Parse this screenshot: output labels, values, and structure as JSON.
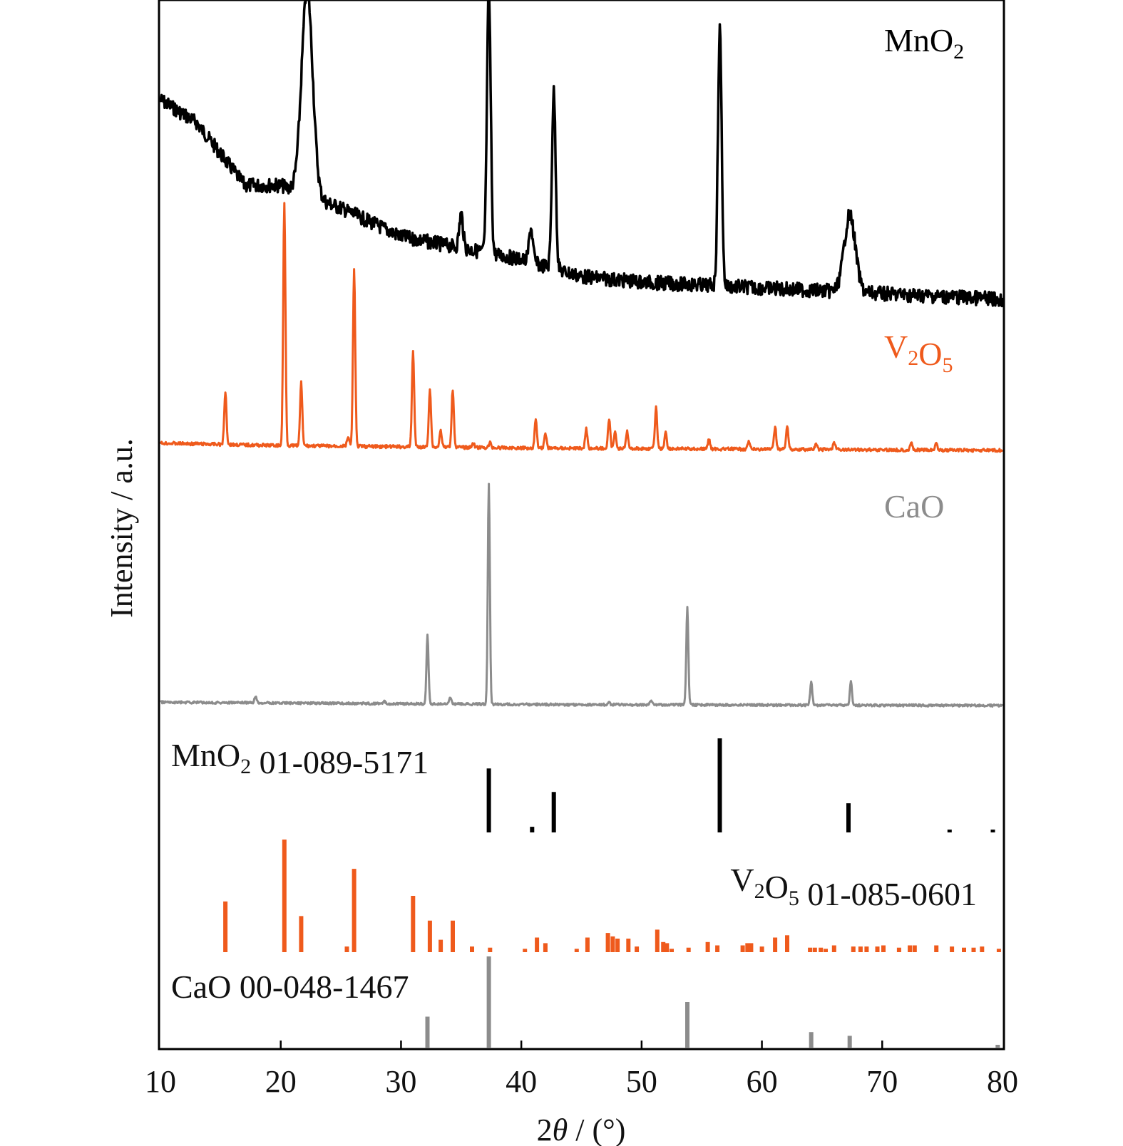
{
  "chart_data": {
    "type": "line",
    "xlabel": {
      "prefix": "2",
      "symbol": "θ",
      "suffix": " / (°)"
    },
    "ylabel": "Intensity / a.u.",
    "xlim": [
      10,
      80
    ],
    "xticks": [
      "10",
      "20",
      "30",
      "40",
      "50",
      "60",
      "70",
      "80"
    ],
    "grid": false,
    "legend": "none",
    "series": [
      {
        "name_parts": [
          [
            "Mn",
            ""
          ],
          [
            "O",
            ""
          ],
          [
            "2",
            "sub"
          ]
        ],
        "color": "#000000",
        "peaks": [
          [
            22.2,
            0.72
          ],
          [
            37.3,
            0.92
          ],
          [
            42.7,
            0.62
          ],
          [
            56.5,
            0.9
          ],
          [
            67.3,
            0.27
          ],
          [
            35.0,
            0.12
          ],
          [
            40.8,
            0.12
          ]
        ],
        "background": [
          [
            10,
            0.7
          ],
          [
            13,
            0.62
          ],
          [
            17,
            0.4
          ],
          [
            20,
            0.4
          ],
          [
            25,
            0.32
          ],
          [
            30,
            0.22
          ],
          [
            35,
            0.18
          ],
          [
            40,
            0.14
          ],
          [
            45,
            0.08
          ],
          [
            50,
            0.06
          ],
          [
            55,
            0.05
          ],
          [
            60,
            0.04
          ],
          [
            70,
            0.02
          ],
          [
            80,
            0.0
          ]
        ]
      },
      {
        "name_parts": [
          [
            "V",
            ""
          ],
          [
            "2",
            "sub"
          ],
          [
            "O",
            ""
          ],
          [
            "5",
            "sub"
          ]
        ],
        "color": "#ef5a1c",
        "peaks": [
          [
            15.4,
            0.22
          ],
          [
            20.3,
            1.0
          ],
          [
            21.7,
            0.26
          ],
          [
            25.6,
            0.04
          ],
          [
            26.1,
            0.73
          ],
          [
            31.0,
            0.4
          ],
          [
            32.4,
            0.24
          ],
          [
            33.3,
            0.07
          ],
          [
            34.3,
            0.24
          ],
          [
            36.0,
            0.02
          ],
          [
            37.4,
            0.02
          ],
          [
            41.2,
            0.12
          ],
          [
            42.0,
            0.06
          ],
          [
            45.4,
            0.08
          ],
          [
            47.3,
            0.12
          ],
          [
            47.8,
            0.07
          ],
          [
            48.8,
            0.07
          ],
          [
            51.2,
            0.17
          ],
          [
            52.0,
            0.07
          ],
          [
            55.6,
            0.04
          ],
          [
            58.9,
            0.03
          ],
          [
            61.1,
            0.09
          ],
          [
            62.1,
            0.1
          ],
          [
            64.5,
            0.02
          ],
          [
            66.0,
            0.03
          ],
          [
            72.4,
            0.03
          ],
          [
            74.5,
            0.03
          ]
        ],
        "background": [
          [
            10,
            0.03
          ],
          [
            20,
            0.02
          ],
          [
            40,
            0.01
          ],
          [
            60,
            0.005
          ],
          [
            80,
            0.0
          ]
        ]
      },
      {
        "name_parts": [
          [
            "CaO",
            ""
          ]
        ],
        "color": "#8c8c8c",
        "peaks": [
          [
            17.9,
            0.03
          ],
          [
            28.6,
            0.01
          ],
          [
            32.2,
            0.31
          ],
          [
            34.1,
            0.03
          ],
          [
            37.3,
            1.0
          ],
          [
            47.3,
            0.01
          ],
          [
            50.8,
            0.02
          ],
          [
            53.8,
            0.44
          ],
          [
            64.1,
            0.11
          ],
          [
            67.4,
            0.11
          ]
        ],
        "background": [
          [
            10,
            0.015
          ],
          [
            40,
            0.005
          ],
          [
            80,
            0.0
          ]
        ]
      }
    ],
    "references": [
      {
        "name_parts": [
          [
            "MnO",
            ""
          ],
          [
            "2",
            "sub"
          ],
          [
            " 01-089-5171",
            ""
          ]
        ],
        "color": "#000000",
        "lines": [
          [
            37.3,
            0.68
          ],
          [
            40.9,
            0.06
          ],
          [
            42.7,
            0.43
          ],
          [
            56.5,
            1.0
          ],
          [
            67.2,
            0.31
          ],
          [
            75.6,
            0.03
          ],
          [
            79.2,
            0.03
          ]
        ]
      },
      {
        "name_parts": [
          [
            "V",
            ""
          ],
          [
            "2",
            "sub"
          ],
          [
            "O",
            ""
          ],
          [
            "5",
            "sub"
          ],
          [
            " 01-085-0601",
            ""
          ]
        ],
        "color": "#ef5a1c",
        "lines": [
          [
            15.4,
            0.45
          ],
          [
            20.3,
            1.0
          ],
          [
            21.7,
            0.32
          ],
          [
            25.5,
            0.05
          ],
          [
            26.1,
            0.74
          ],
          [
            31.0,
            0.5
          ],
          [
            32.4,
            0.28
          ],
          [
            33.3,
            0.11
          ],
          [
            34.3,
            0.28
          ],
          [
            35.9,
            0.05
          ],
          [
            37.4,
            0.04
          ],
          [
            40.3,
            0.03
          ],
          [
            41.3,
            0.13
          ],
          [
            42.0,
            0.08
          ],
          [
            44.6,
            0.03
          ],
          [
            45.5,
            0.13
          ],
          [
            47.2,
            0.17
          ],
          [
            47.6,
            0.14
          ],
          [
            48.0,
            0.12
          ],
          [
            48.9,
            0.12
          ],
          [
            49.6,
            0.05
          ],
          [
            51.3,
            0.2
          ],
          [
            51.8,
            0.09
          ],
          [
            52.1,
            0.08
          ],
          [
            52.5,
            0.03
          ],
          [
            53.9,
            0.04
          ],
          [
            55.5,
            0.09
          ],
          [
            56.3,
            0.06
          ],
          [
            58.4,
            0.06
          ],
          [
            58.8,
            0.08
          ],
          [
            59.1,
            0.08
          ],
          [
            60.0,
            0.05
          ],
          [
            61.1,
            0.13
          ],
          [
            62.1,
            0.15
          ],
          [
            64.0,
            0.04
          ],
          [
            64.4,
            0.04
          ],
          [
            64.9,
            0.04
          ],
          [
            65.3,
            0.03
          ],
          [
            66.0,
            0.06
          ],
          [
            67.6,
            0.05
          ],
          [
            68.2,
            0.05
          ],
          [
            68.7,
            0.05
          ],
          [
            69.6,
            0.05
          ],
          [
            70.1,
            0.06
          ],
          [
            71.4,
            0.04
          ],
          [
            72.3,
            0.06
          ],
          [
            72.7,
            0.06
          ],
          [
            74.5,
            0.06
          ],
          [
            75.8,
            0.05
          ],
          [
            76.8,
            0.04
          ],
          [
            77.6,
            0.04
          ],
          [
            78.3,
            0.05
          ],
          [
            79.7,
            0.03
          ]
        ]
      },
      {
        "name_parts": [
          [
            "CaO 00-048-1467",
            ""
          ]
        ],
        "color": "#8c8c8c",
        "lines": [
          [
            32.2,
            0.34
          ],
          [
            37.3,
            1.0
          ],
          [
            53.8,
            0.5
          ],
          [
            64.1,
            0.17
          ],
          [
            67.3,
            0.13
          ],
          [
            79.6,
            0.03
          ]
        ]
      }
    ]
  }
}
